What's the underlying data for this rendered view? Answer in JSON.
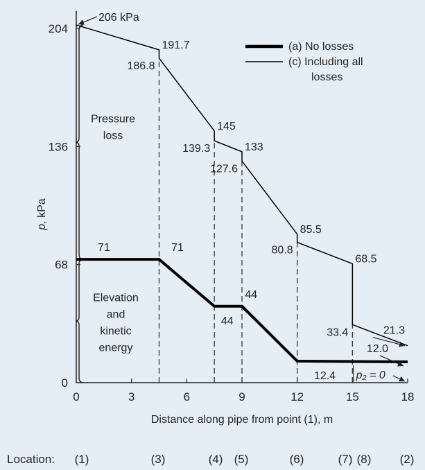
{
  "chart_data": {
    "type": "line",
    "xlabel": "Distance along pipe from point (1), m",
    "ylabel": "p, kPa",
    "xlim": [
      0,
      18
    ],
    "ylim": [
      0,
      214
    ],
    "x_ticks": [
      0,
      3,
      6,
      9,
      12,
      15,
      18
    ],
    "y_ticks": [
      0,
      68,
      136,
      204
    ],
    "x_tick_labels": [
      "0",
      "3",
      "6",
      "9",
      "12",
      "15",
      "18"
    ],
    "y_tick_labels": [
      "0",
      "68",
      "136",
      "204"
    ],
    "series": [
      {
        "name": "(a) No losses",
        "style": "thick",
        "points": [
          [
            0,
            71
          ],
          [
            4.5,
            71
          ],
          [
            7.5,
            44
          ],
          [
            9,
            44
          ],
          [
            12,
            12.4
          ],
          [
            18,
            12.0
          ]
        ]
      },
      {
        "name": "(c) Including all losses",
        "style": "thin",
        "points": [
          [
            0,
            206
          ],
          [
            4.5,
            191.7
          ],
          [
            4.5,
            186.8
          ],
          [
            7.5,
            145
          ],
          [
            7.5,
            139.3
          ],
          [
            9,
            133
          ],
          [
            9,
            127.6
          ],
          [
            12,
            85.5
          ],
          [
            12,
            80.8
          ],
          [
            15,
            68.5
          ],
          [
            15,
            33.4
          ],
          [
            18,
            21.3
          ]
        ]
      }
    ],
    "dashed_verticals": [
      {
        "x": 4.5,
        "y_top": 186.8
      },
      {
        "x": 7.5,
        "y_top": 139.3
      },
      {
        "x": 9,
        "y_top": 127.6
      },
      {
        "x": 12,
        "y_top": 80.8
      },
      {
        "x": 15,
        "y_top": 33.4
      }
    ],
    "annotations": [
      {
        "text": "206 kPa",
        "x": 0,
        "y": 206,
        "type": "arrow-top"
      },
      {
        "text": "191.7",
        "x": 4.5,
        "y": 191.7,
        "anchor": "right-of"
      },
      {
        "text": "186.8",
        "x": 4.5,
        "y": 186.8,
        "anchor": "left-of"
      },
      {
        "text": "145",
        "x": 7.5,
        "y": 145,
        "anchor": "right-of"
      },
      {
        "text": "139.3",
        "x": 7.5,
        "y": 139.3,
        "anchor": "left-of"
      },
      {
        "text": "133",
        "x": 9,
        "y": 133,
        "anchor": "right-of"
      },
      {
        "text": "127.6",
        "x": 9,
        "y": 127.6,
        "anchor": "left-of"
      },
      {
        "text": "85.5",
        "x": 12,
        "y": 85.5,
        "anchor": "right-of"
      },
      {
        "text": "80.8",
        "x": 12,
        "y": 80.8,
        "anchor": "left-of"
      },
      {
        "text": "68.5",
        "x": 15,
        "y": 68.5,
        "anchor": "right-of"
      },
      {
        "text": "71",
        "x": 1.5,
        "y": 71,
        "anchor": "above"
      },
      {
        "text": "71",
        "x": 5.5,
        "y": 71,
        "anchor": "above"
      },
      {
        "text": "44",
        "x": 9.5,
        "y": 44,
        "anchor": "above"
      },
      {
        "text": "44",
        "x": 8.2,
        "y": 44,
        "anchor": "below"
      },
      {
        "text": "33.4",
        "x": 15,
        "y": 33.4,
        "anchor": "left-of"
      },
      {
        "text": "21.3",
        "x": 18,
        "y": 21.3,
        "anchor": "arrow"
      },
      {
        "text": "12.0",
        "x": 18,
        "y": 12.0,
        "anchor": "arrow"
      },
      {
        "text": "12.4",
        "x": 13.5,
        "y": 12.4,
        "anchor": "below"
      },
      {
        "text": "p₂ = 0",
        "x": 18,
        "y": 0,
        "anchor": "arrow"
      }
    ],
    "bracket_labels": {
      "pressure_loss": [
        "Pressure",
        "loss"
      ],
      "elevation": [
        "Elevation",
        "and",
        "kinetic",
        "energy"
      ]
    },
    "legend": {
      "placement": "top-right",
      "entries": [
        {
          "label": "(a) No losses",
          "style": "thick"
        },
        {
          "label_lines": [
            "(c) Including all",
            "losses"
          ],
          "style": "thin"
        }
      ]
    },
    "locations": {
      "prefix": "Location:",
      "items": [
        {
          "label": "(1)",
          "x": 0
        },
        {
          "label": "(3)",
          "x": 4.5
        },
        {
          "label": "(4)",
          "x": 7.5
        },
        {
          "label": "(5)",
          "x": 9
        },
        {
          "label": "(6)",
          "x": 12
        },
        {
          "label": "(7)",
          "x": 15
        },
        {
          "label": "(8)",
          "x": 15
        },
        {
          "label": "(2)",
          "x": 18
        }
      ]
    }
  }
}
